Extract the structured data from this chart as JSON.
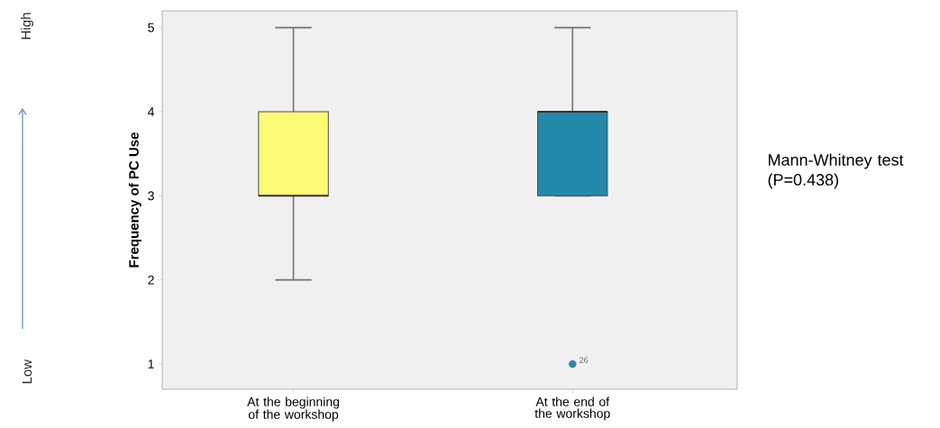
{
  "chart_data": {
    "type": "box",
    "categories": [
      "At the beginning of the workshop",
      "At the end of the workshop"
    ],
    "colors": [
      "#fcfb77",
      "#2389ab"
    ],
    "boxes": [
      {
        "low": 2,
        "q1": 3,
        "median": 3,
        "q3": 4,
        "high": 5
      },
      {
        "low": 3,
        "q1": 3,
        "median": 4,
        "q3": 4,
        "high": 5,
        "outliers": [
          1
        ]
      }
    ],
    "ylabel": "Frequency of PC Use",
    "ylim": [
      0.7,
      5.2
    ],
    "yticks": [
      1,
      2,
      3,
      4,
      5
    ],
    "grid": false,
    "annotations": [
      "High",
      "Low",
      "Mann-Whitney test (P=0.438)",
      "26"
    ]
  }
}
